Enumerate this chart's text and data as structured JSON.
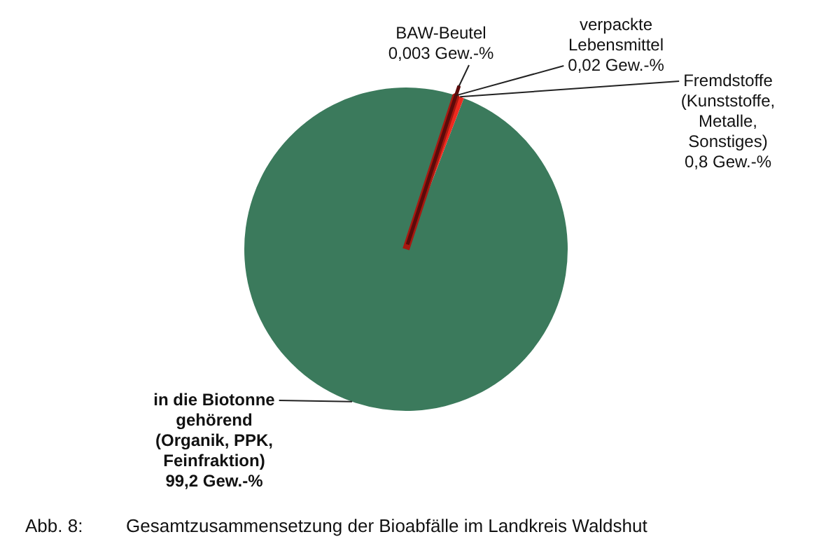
{
  "chart_data": {
    "type": "pie",
    "categories": [
      "BAW-Beutel",
      "verpackte Lebensmittel",
      "Fremdstoffe (Kunststoffe, Metalle, Sonstiges)",
      "in die Biotonne gehörend (Organik, PPK, Feinfraktion)"
    ],
    "values": [
      0.003,
      0.02,
      0.8,
      99.2
    ],
    "colors": [
      "#5c0a0a",
      "#a81810",
      "#ee2a1f",
      "#3b7a5c"
    ],
    "value_labels": [
      "0,003 Gew.-%",
      "0,02 Gew.-%",
      "0,8 Gew.-%",
      "99,2 Gew.-%"
    ],
    "annotations": [
      "Abb. 8:\tGesamtzusammensetzung der Bioabfälle im Landkreis Waldshut"
    ]
  }
}
